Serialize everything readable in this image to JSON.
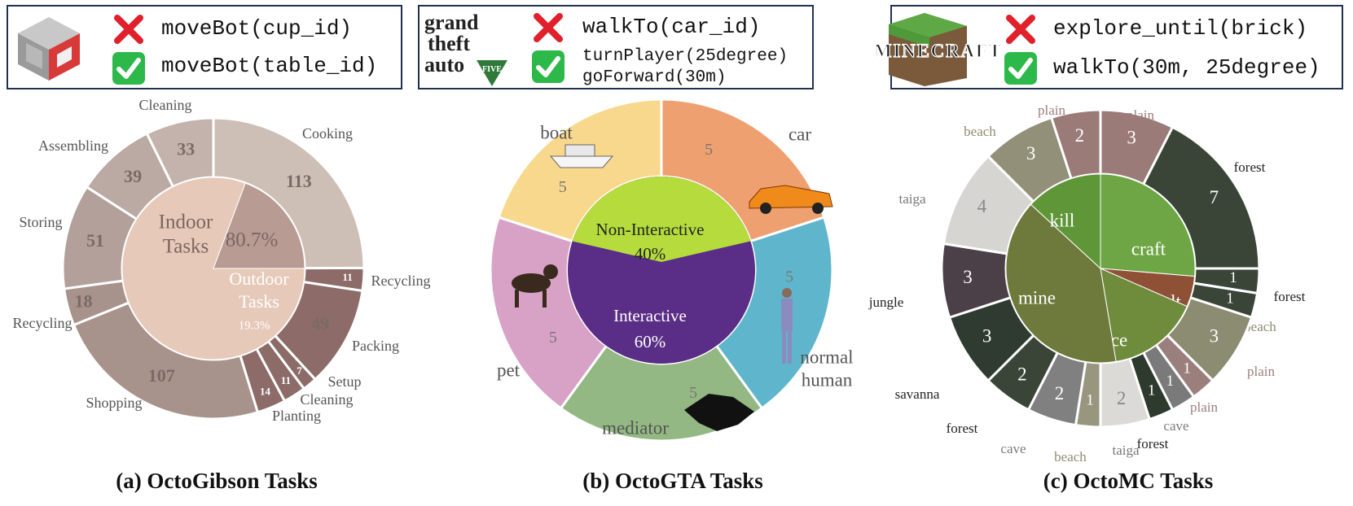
{
  "header": {
    "gibson": {
      "wrong": "moveBot(cup_id)",
      "right": "moveBot(table_id)"
    },
    "gta": {
      "wrong": "walkTo(car_id)",
      "right1": "turnPlayer(25degree)",
      "right2": "goForward(30m)",
      "logo_lines": [
        "grand",
        "theft",
        "auto",
        "FIVE"
      ]
    },
    "mc": {
      "wrong": "explore_until(brick)",
      "right": "walkTo(30m, 25degree)",
      "logo": "MINECRAFT"
    }
  },
  "captions": {
    "a": "(a) OctoGibson Tasks",
    "b": "(b) OctoGTA Tasks",
    "c": "(c) OctoMC Tasks"
  },
  "colors": {
    "box_border": "#1f3150",
    "cross": "#e0202a",
    "check": "#2db84a"
  },
  "chart_data": [
    {
      "type": "pie",
      "title": "(a) OctoGibson Tasks",
      "inner": [
        {
          "label": "Indoor Tasks",
          "value": 80.7,
          "display": "80.7%",
          "color": "#e6c9b8"
        },
        {
          "label": "Outdoor Tasks",
          "value": 19.3,
          "display": "19.3%",
          "color": "#b89c94"
        }
      ],
      "outer": [
        {
          "label": "Cooking",
          "value": 113,
          "color": "#cdbfb6"
        },
        {
          "label": "Recycling",
          "value": 11,
          "color": "#8c6b68"
        },
        {
          "label": "Packing",
          "value": 49,
          "color": "#8c6b68"
        },
        {
          "label": "Setup",
          "value": 7,
          "color": "#8c6b68"
        },
        {
          "label": "Cleaning",
          "value": 11,
          "color": "#8c6b68"
        },
        {
          "label": "Planting",
          "value": 14,
          "color": "#8c6b68"
        },
        {
          "label": "Shopping",
          "value": 107,
          "color": "#a8928c"
        },
        {
          "label": "Recycling",
          "value": 18,
          "color": "#a8928c"
        },
        {
          "label": "Storing",
          "value": 51,
          "color": "#b3a09a"
        },
        {
          "label": "Assembling",
          "value": 39,
          "color": "#bba9a3"
        },
        {
          "label": "Cleaning",
          "value": 33,
          "color": "#c4b3ac"
        }
      ]
    },
    {
      "type": "pie",
      "title": "(b) OctoGTA Tasks",
      "inner": [
        {
          "label": "Non-Interactive",
          "value": 40,
          "display": "40%",
          "color": "#b5dc3c"
        },
        {
          "label": "Interactive",
          "value": 60,
          "display": "60%",
          "color": "#5a2e86"
        }
      ],
      "outer": [
        {
          "label": "car",
          "value": 5,
          "color": "#eea070"
        },
        {
          "label": "normal human",
          "value": 5,
          "color": "#5fb6cc"
        },
        {
          "label": "mediator",
          "value": 5,
          "color": "#93b883"
        },
        {
          "label": "pet",
          "value": 5,
          "color": "#d8a1c6"
        },
        {
          "label": "boat",
          "value": 5,
          "color": "#f8d88c"
        }
      ]
    },
    {
      "type": "pie",
      "title": "(c) OctoMC Tasks",
      "inner": [
        {
          "label": "craft",
          "value": 10,
          "color": "#6ea645"
        },
        {
          "label": "smelt",
          "value": 2,
          "color": "#8f5135"
        },
        {
          "label": "place",
          "value": 6,
          "color": "#6e8c3c"
        },
        {
          "label": "mine",
          "value": 15,
          "color": "#6d7a3c"
        },
        {
          "label": "kill",
          "value": 5,
          "color": "#5e9638"
        }
      ],
      "outer": [
        {
          "label": "plain",
          "value": 3,
          "color": "#9a7b78"
        },
        {
          "label": "forest",
          "value": 7,
          "color": "#3a4538"
        },
        {
          "label": "forest",
          "value": 1,
          "color": "#3a4538"
        },
        {
          "label": "beach",
          "value": 1,
          "color": "#3a4538"
        },
        {
          "label": "plain",
          "value": 3,
          "color": "#8c8c72"
        },
        {
          "label": "plain",
          "value": 1,
          "color": "#9b7f7d"
        },
        {
          "label": "cave",
          "value": 1,
          "color": "#7a7a7a"
        },
        {
          "label": "forest",
          "value": 1,
          "color": "#2d3a2d"
        },
        {
          "label": "taiga",
          "value": 2,
          "color": "#dcdad6"
        },
        {
          "label": "beach",
          "value": 1,
          "color": "#999680"
        },
        {
          "label": "cave",
          "value": 2,
          "color": "#808080"
        },
        {
          "label": "forest",
          "value": 2,
          "color": "#3a4538"
        },
        {
          "label": "savanna",
          "value": 3,
          "color": "#2f3a30"
        },
        {
          "label": "jungle",
          "value": 3,
          "color": "#4b3f48"
        },
        {
          "label": "taiga",
          "value": 4,
          "color": "#d6d5d1"
        },
        {
          "label": "beach",
          "value": 3,
          "color": "#929079"
        },
        {
          "label": "plain",
          "value": 2,
          "color": "#9a7b78"
        }
      ]
    }
  ]
}
